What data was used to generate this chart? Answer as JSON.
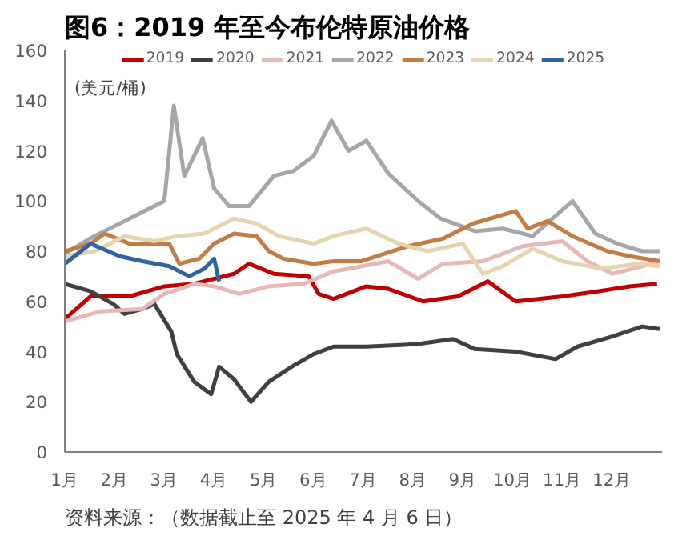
{
  "chart_data": {
    "type": "line",
    "title": "图6：2019 年至今布伦特原油价格",
    "ylabel": "(美元/桶)",
    "annotations": [
      "资料来源：（数据截止至 2025 年 4 月 6 日）"
    ],
    "ylim": [
      0,
      160
    ],
    "yticks": [
      0,
      20,
      40,
      60,
      80,
      100,
      120,
      140,
      160
    ],
    "xlim": [
      1,
      13
    ],
    "xticks": [
      {
        "value": 1,
        "label": "1月"
      },
      {
        "value": 2,
        "label": "2月"
      },
      {
        "value": 3,
        "label": "3月"
      },
      {
        "value": 4,
        "label": "4月"
      },
      {
        "value": 5,
        "label": "5月"
      },
      {
        "value": 6,
        "label": "6月"
      },
      {
        "value": 7,
        "label": "7月"
      },
      {
        "value": 8,
        "label": "8月"
      },
      {
        "value": 9,
        "label": "9月"
      },
      {
        "value": 10,
        "label": "10月"
      },
      {
        "value": 11,
        "label": "11月"
      },
      {
        "value": 12,
        "label": "12月"
      }
    ],
    "grid": false,
    "legend": "top",
    "line_style": "solid",
    "marker": "none",
    "series": [
      {
        "name": "2019",
        "color": "#c00000",
        "x": [
          1,
          1.52,
          2.3,
          3.0,
          3.6,
          4.4,
          4.7,
          5.2,
          5.9,
          6.1,
          6.4,
          7.06,
          7.5,
          8.2,
          8.9,
          9.5,
          10.06,
          11.0,
          11.7,
          12.35,
          12.9
        ],
        "values": [
          53,
          62,
          62,
          66,
          67,
          71,
          75,
          71,
          70,
          63,
          61,
          66,
          65,
          60,
          62,
          68,
          60,
          62,
          64,
          66,
          67
        ]
      },
      {
        "name": "2020",
        "color": "#404040",
        "x": [
          1,
          1.52,
          1.97,
          2.2,
          2.56,
          2.8,
          3.14,
          3.25,
          3.6,
          3.94,
          4.1,
          4.4,
          4.74,
          5.1,
          5.56,
          6.0,
          6.4,
          7.06,
          8.1,
          8.8,
          9.24,
          10.06,
          10.86,
          11.3,
          12.0,
          12.6,
          12.95
        ],
        "values": [
          67,
          64,
          59,
          55,
          57,
          59,
          48,
          39,
          28,
          23,
          34,
          29,
          20,
          28,
          34,
          39,
          42,
          42,
          43,
          45,
          41,
          40,
          37,
          42,
          46,
          50,
          49
        ]
      },
      {
        "name": "2021",
        "color": "#e6b9b8",
        "x": [
          1,
          1.7,
          2.56,
          3.0,
          3.6,
          4.0,
          4.5,
          5.1,
          5.8,
          6.4,
          6.7,
          7.5,
          8.1,
          8.6,
          9.4,
          10.2,
          11.0,
          11.5,
          12.0,
          12.6,
          12.95
        ],
        "values": [
          52,
          56,
          57,
          63,
          67,
          66,
          63,
          66,
          67,
          72,
          73,
          76,
          69,
          75,
          76,
          82,
          84,
          76,
          71,
          74,
          76
        ]
      },
      {
        "name": "2022",
        "color": "#a6a6a6",
        "x": [
          1,
          1.5,
          2,
          2.5,
          3.0,
          3.19,
          3.4,
          3.77,
          4.0,
          4.3,
          4.7,
          5.2,
          5.6,
          6.0,
          6.36,
          6.7,
          7.06,
          7.5,
          8.1,
          8.55,
          9.24,
          9.8,
          10.4,
          11.2,
          11.66,
          12.1,
          12.6,
          12.95
        ],
        "values": [
          79,
          85,
          90,
          95,
          100,
          138,
          110,
          125,
          105,
          98,
          98,
          110,
          112,
          118,
          132,
          120,
          124,
          111,
          100,
          93,
          88,
          89,
          86,
          100,
          87,
          83,
          80,
          80
        ]
      },
      {
        "name": "2023",
        "color": "#c57b44",
        "x": [
          1,
          1.52,
          1.8,
          2.3,
          3.1,
          3.3,
          3.7,
          4.0,
          4.4,
          4.85,
          5.1,
          5.4,
          6.0,
          6.4,
          6.95,
          7.9,
          8.6,
          9.2,
          10.06,
          10.3,
          10.7,
          11.2,
          11.9,
          12.35,
          12.95
        ],
        "values": [
          80,
          83,
          87,
          83,
          83,
          75,
          77,
          83,
          87,
          86,
          80,
          77,
          75,
          76,
          76,
          82,
          85,
          91,
          96,
          89,
          92,
          86,
          80,
          78,
          76
        ]
      },
      {
        "name": "2024",
        "color": "#e6d3b0",
        "x": [
          1,
          1.6,
          2.2,
          2.8,
          3.25,
          3.8,
          4.4,
          4.85,
          5.3,
          6.0,
          6.4,
          7.06,
          7.7,
          8.3,
          9.0,
          9.4,
          9.8,
          10.4,
          11.0,
          11.8,
          12.5,
          12.95
        ],
        "values": [
          78,
          80,
          86,
          84,
          86,
          87,
          93,
          91,
          86,
          83,
          86,
          89,
          83,
          80,
          83,
          71,
          74,
          81,
          76,
          73,
          75,
          74
        ]
      },
      {
        "name": "2025",
        "color": "#2e64a0",
        "x": [
          1,
          1.52,
          2.1,
          2.56,
          3.1,
          3.5,
          3.8,
          4.0,
          4.1
        ],
        "values": [
          75,
          83,
          78,
          76,
          74,
          70,
          73,
          77,
          68
        ]
      }
    ]
  }
}
